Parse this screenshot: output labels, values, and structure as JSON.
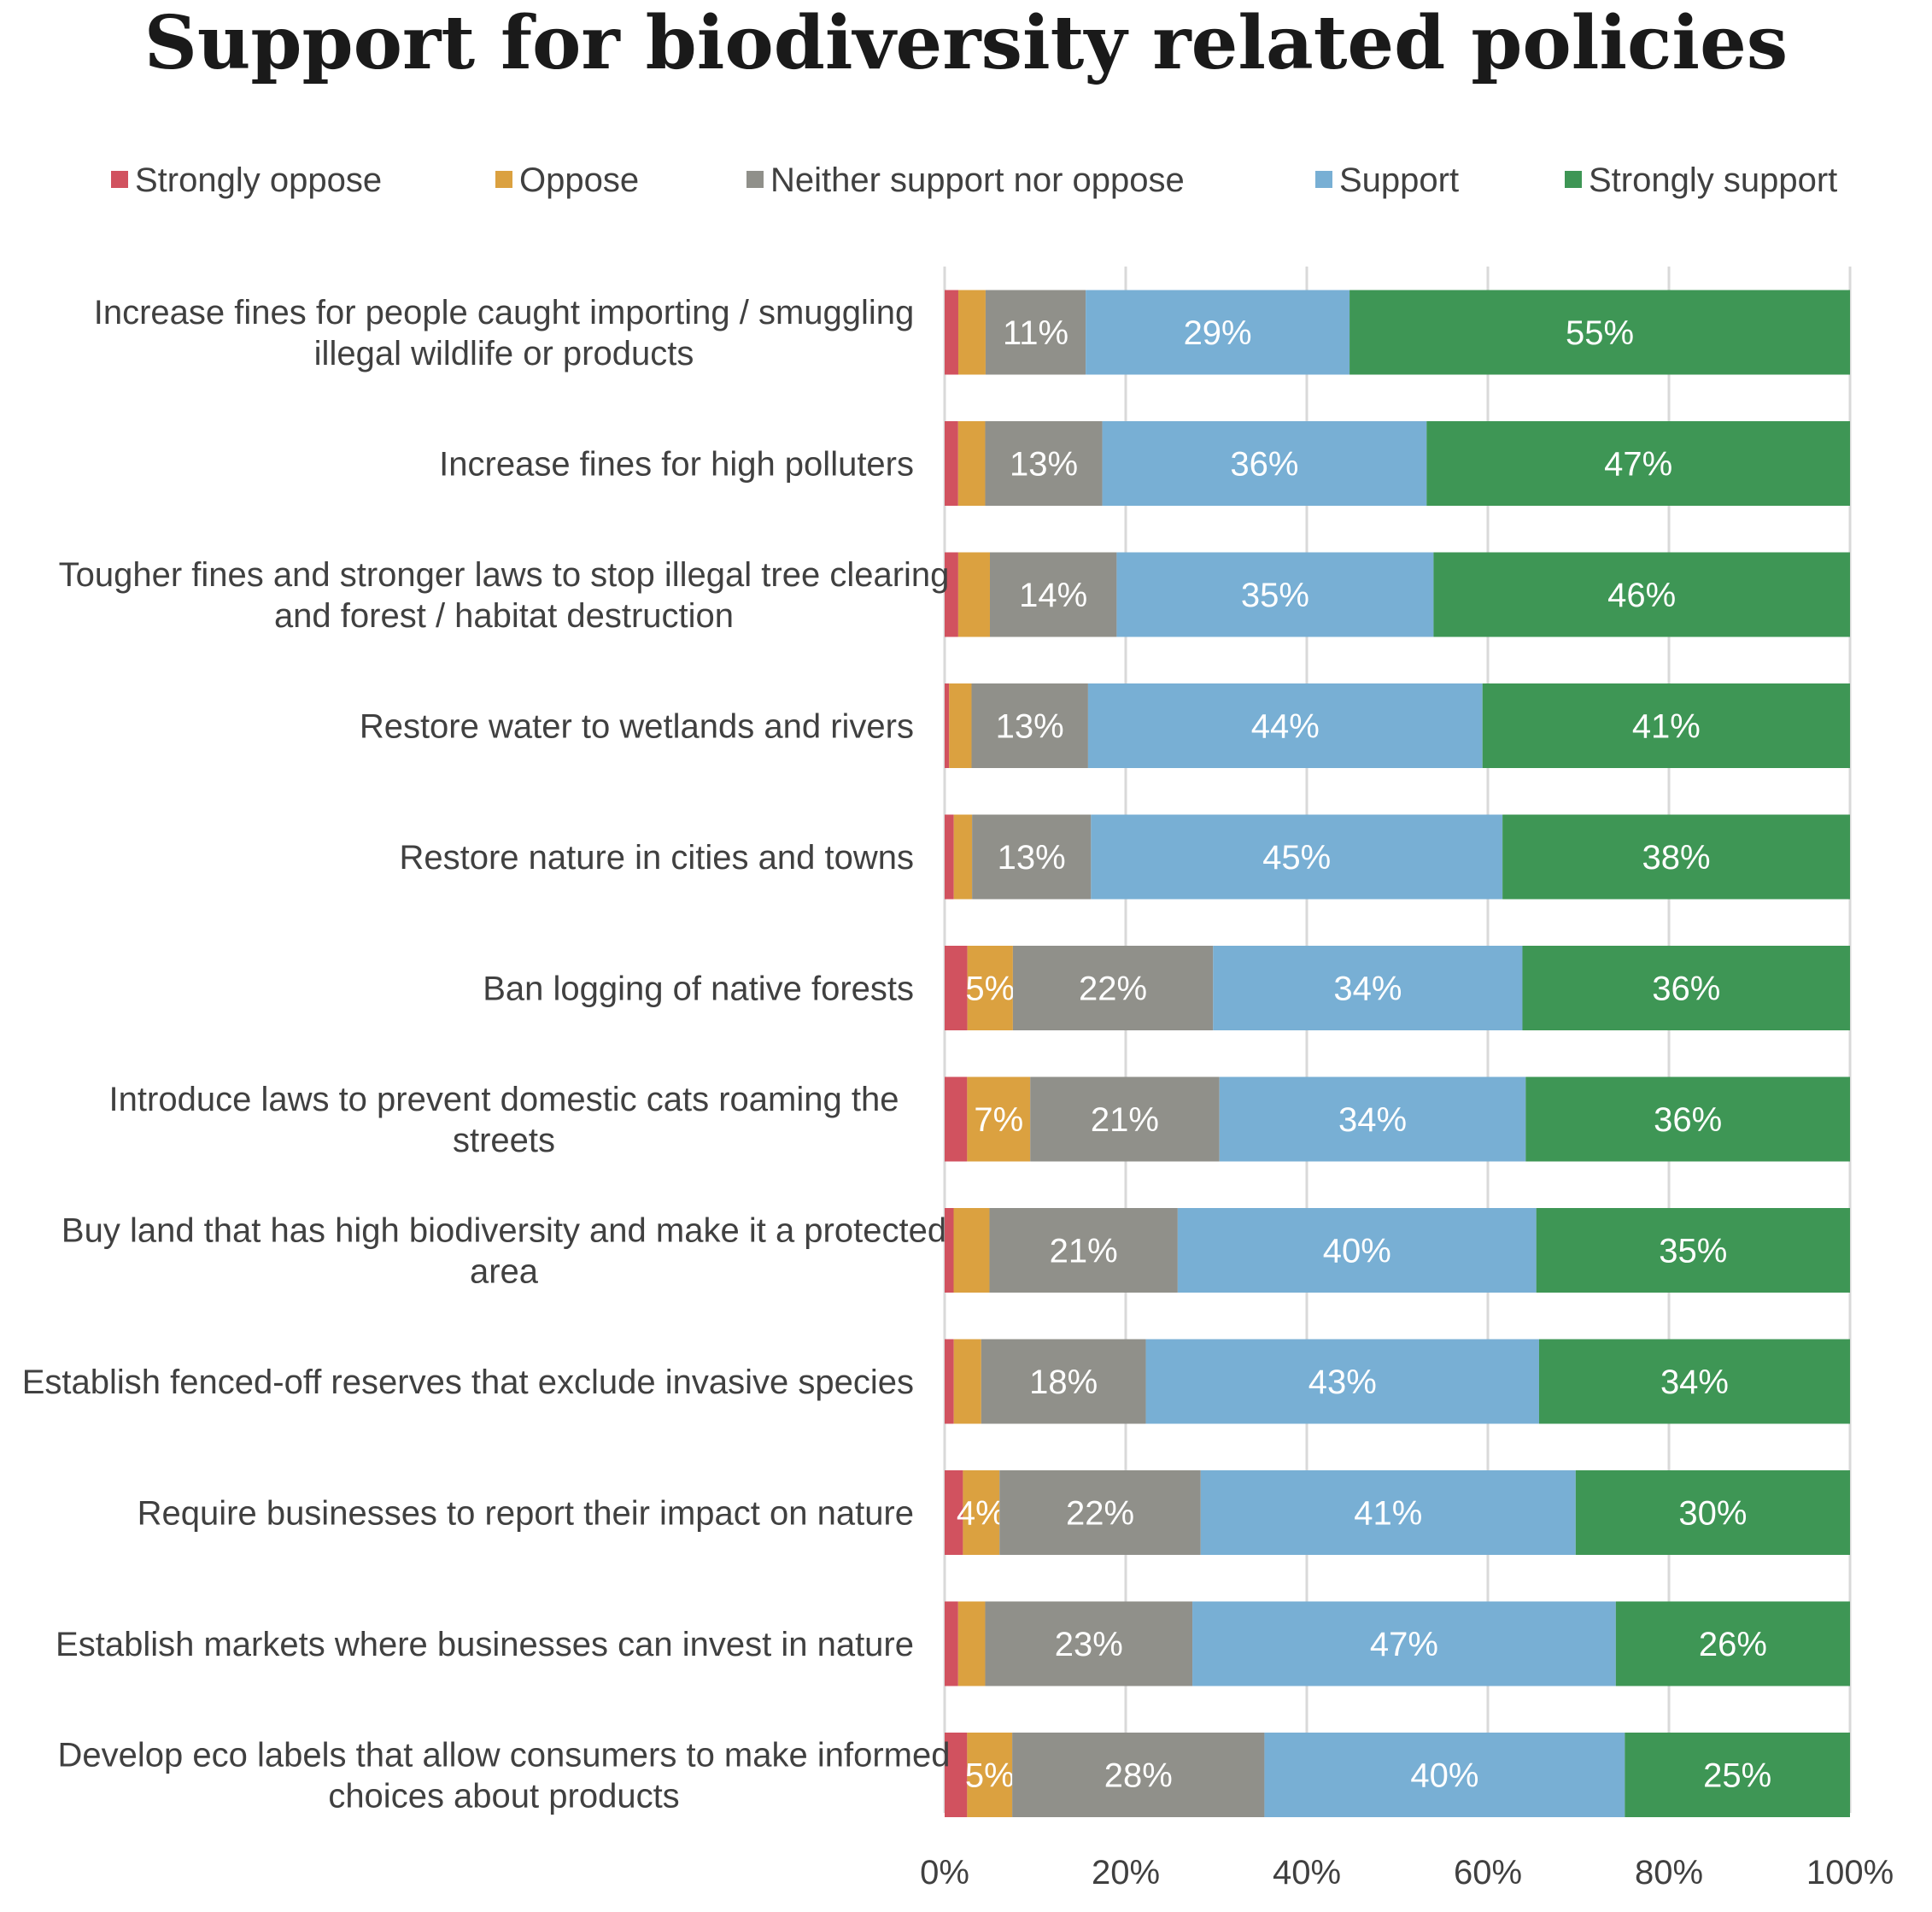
{
  "chart_data": {
    "type": "bar",
    "orientation": "horizontal",
    "stacked": "100%",
    "title": "Support for biodiversity related policies",
    "legend_position": "top",
    "grid": true,
    "xlim": [
      0,
      100
    ],
    "x_ticks": [
      "0%",
      "20%",
      "40%",
      "60%",
      "80%",
      "100%"
    ],
    "categories": [
      "Increase fines for people caught importing / smuggling illegal wildlife or products",
      "Increase fines for high polluters",
      "Tougher fines and stronger laws to stop illegal tree clearing and forest / habitat destruction",
      "Restore water to wetlands and rivers",
      "Restore nature in cities and towns",
      "Ban logging of native forests",
      "Introduce laws to prevent domestic cats roaming the streets",
      "Buy land that has high biodiversity and make it a protected area",
      "Establish fenced-off reserves that exclude invasive species",
      "Require businesses to report their impact on nature",
      "Establish markets where businesses can invest in nature",
      "Develop eco labels that allow consumers to make informed choices about products"
    ],
    "series": [
      {
        "name": "Strongly oppose",
        "color": "#d1525f",
        "values": [
          1.5,
          1.5,
          1.5,
          0.5,
          1,
          2.5,
          2.5,
          1,
          1,
          2,
          1.5,
          2.5
        ],
        "labels": [
          null,
          null,
          null,
          null,
          null,
          null,
          null,
          null,
          null,
          null,
          null,
          null
        ]
      },
      {
        "name": "Oppose",
        "color": "#dba140",
        "values": [
          3,
          3,
          3.5,
          2.5,
          2,
          5,
          7,
          4,
          3,
          4,
          3,
          5
        ],
        "labels": [
          null,
          null,
          null,
          null,
          null,
          "5%",
          "7%",
          null,
          null,
          "4%",
          null,
          "5%"
        ]
      },
      {
        "name": "Neither support nor oppose",
        "color": "#90908a",
        "values": [
          11,
          13,
          14,
          13,
          13,
          22,
          21,
          21,
          18,
          22,
          23,
          28
        ],
        "labels": [
          "11%",
          "13%",
          "14%",
          "13%",
          "13%",
          "22%",
          "21%",
          "21%",
          "18%",
          "22%",
          "23%",
          "28%"
        ]
      },
      {
        "name": "Support",
        "color": "#78afd4",
        "values": [
          29,
          36,
          35,
          44,
          45,
          34,
          34,
          40,
          43,
          41,
          47,
          40
        ],
        "labels": [
          "29%",
          "36%",
          "35%",
          "44%",
          "45%",
          "34%",
          "34%",
          "40%",
          "43%",
          "41%",
          "47%",
          "40%"
        ]
      },
      {
        "name": "Strongly support",
        "color": "#3e9655",
        "values": [
          55,
          47,
          46,
          41,
          38,
          36,
          36,
          35,
          34,
          30,
          26,
          25
        ],
        "labels": [
          "55%",
          "47%",
          "46%",
          "41%",
          "38%",
          "36%",
          "36%",
          "35%",
          "34%",
          "30%",
          "26%",
          "25%"
        ]
      }
    ]
  }
}
